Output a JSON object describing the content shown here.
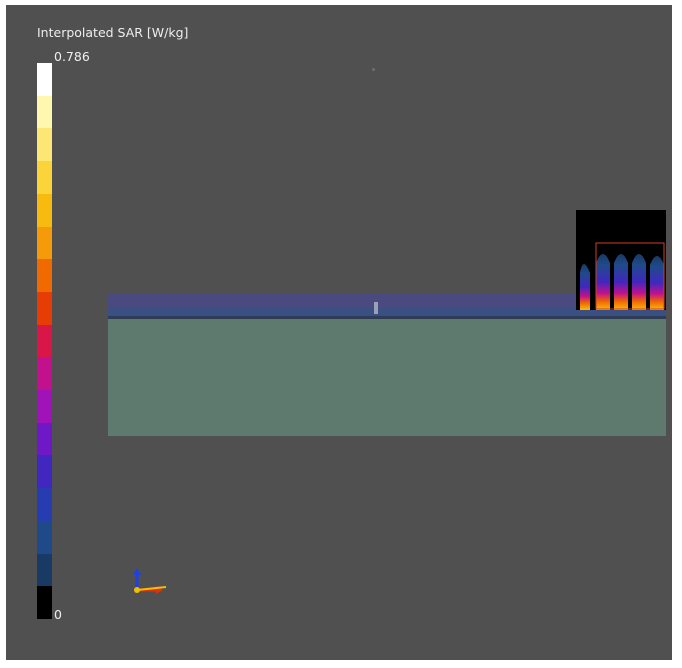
{
  "colorbar": {
    "title": "Interpolated SAR [W/kg]",
    "max_label": "0.786",
    "min_label": "0",
    "colors_top_to_bottom": [
      "#ffffff",
      "#fff7b0",
      "#fde774",
      "#fbd43a",
      "#f7bb10",
      "#f59a08",
      "#f06a00",
      "#e63d05",
      "#d81748",
      "#c2118c",
      "#9f13b8",
      "#6e18c8",
      "#4127c0",
      "#263cb0",
      "#1f4a8a",
      "#1a3a66",
      "#000000"
    ]
  },
  "scene": {
    "substrate_color": "#5e7a6e",
    "layer_color": "#3a4a78",
    "layer_top_color": "#4a4a80",
    "coil_box_color": "#000000",
    "coil_outline_color": "#d04020"
  },
  "axes_triad": {
    "x_color": "#e03010",
    "y_color": "#f0c000",
    "z_color": "#2040e0"
  }
}
